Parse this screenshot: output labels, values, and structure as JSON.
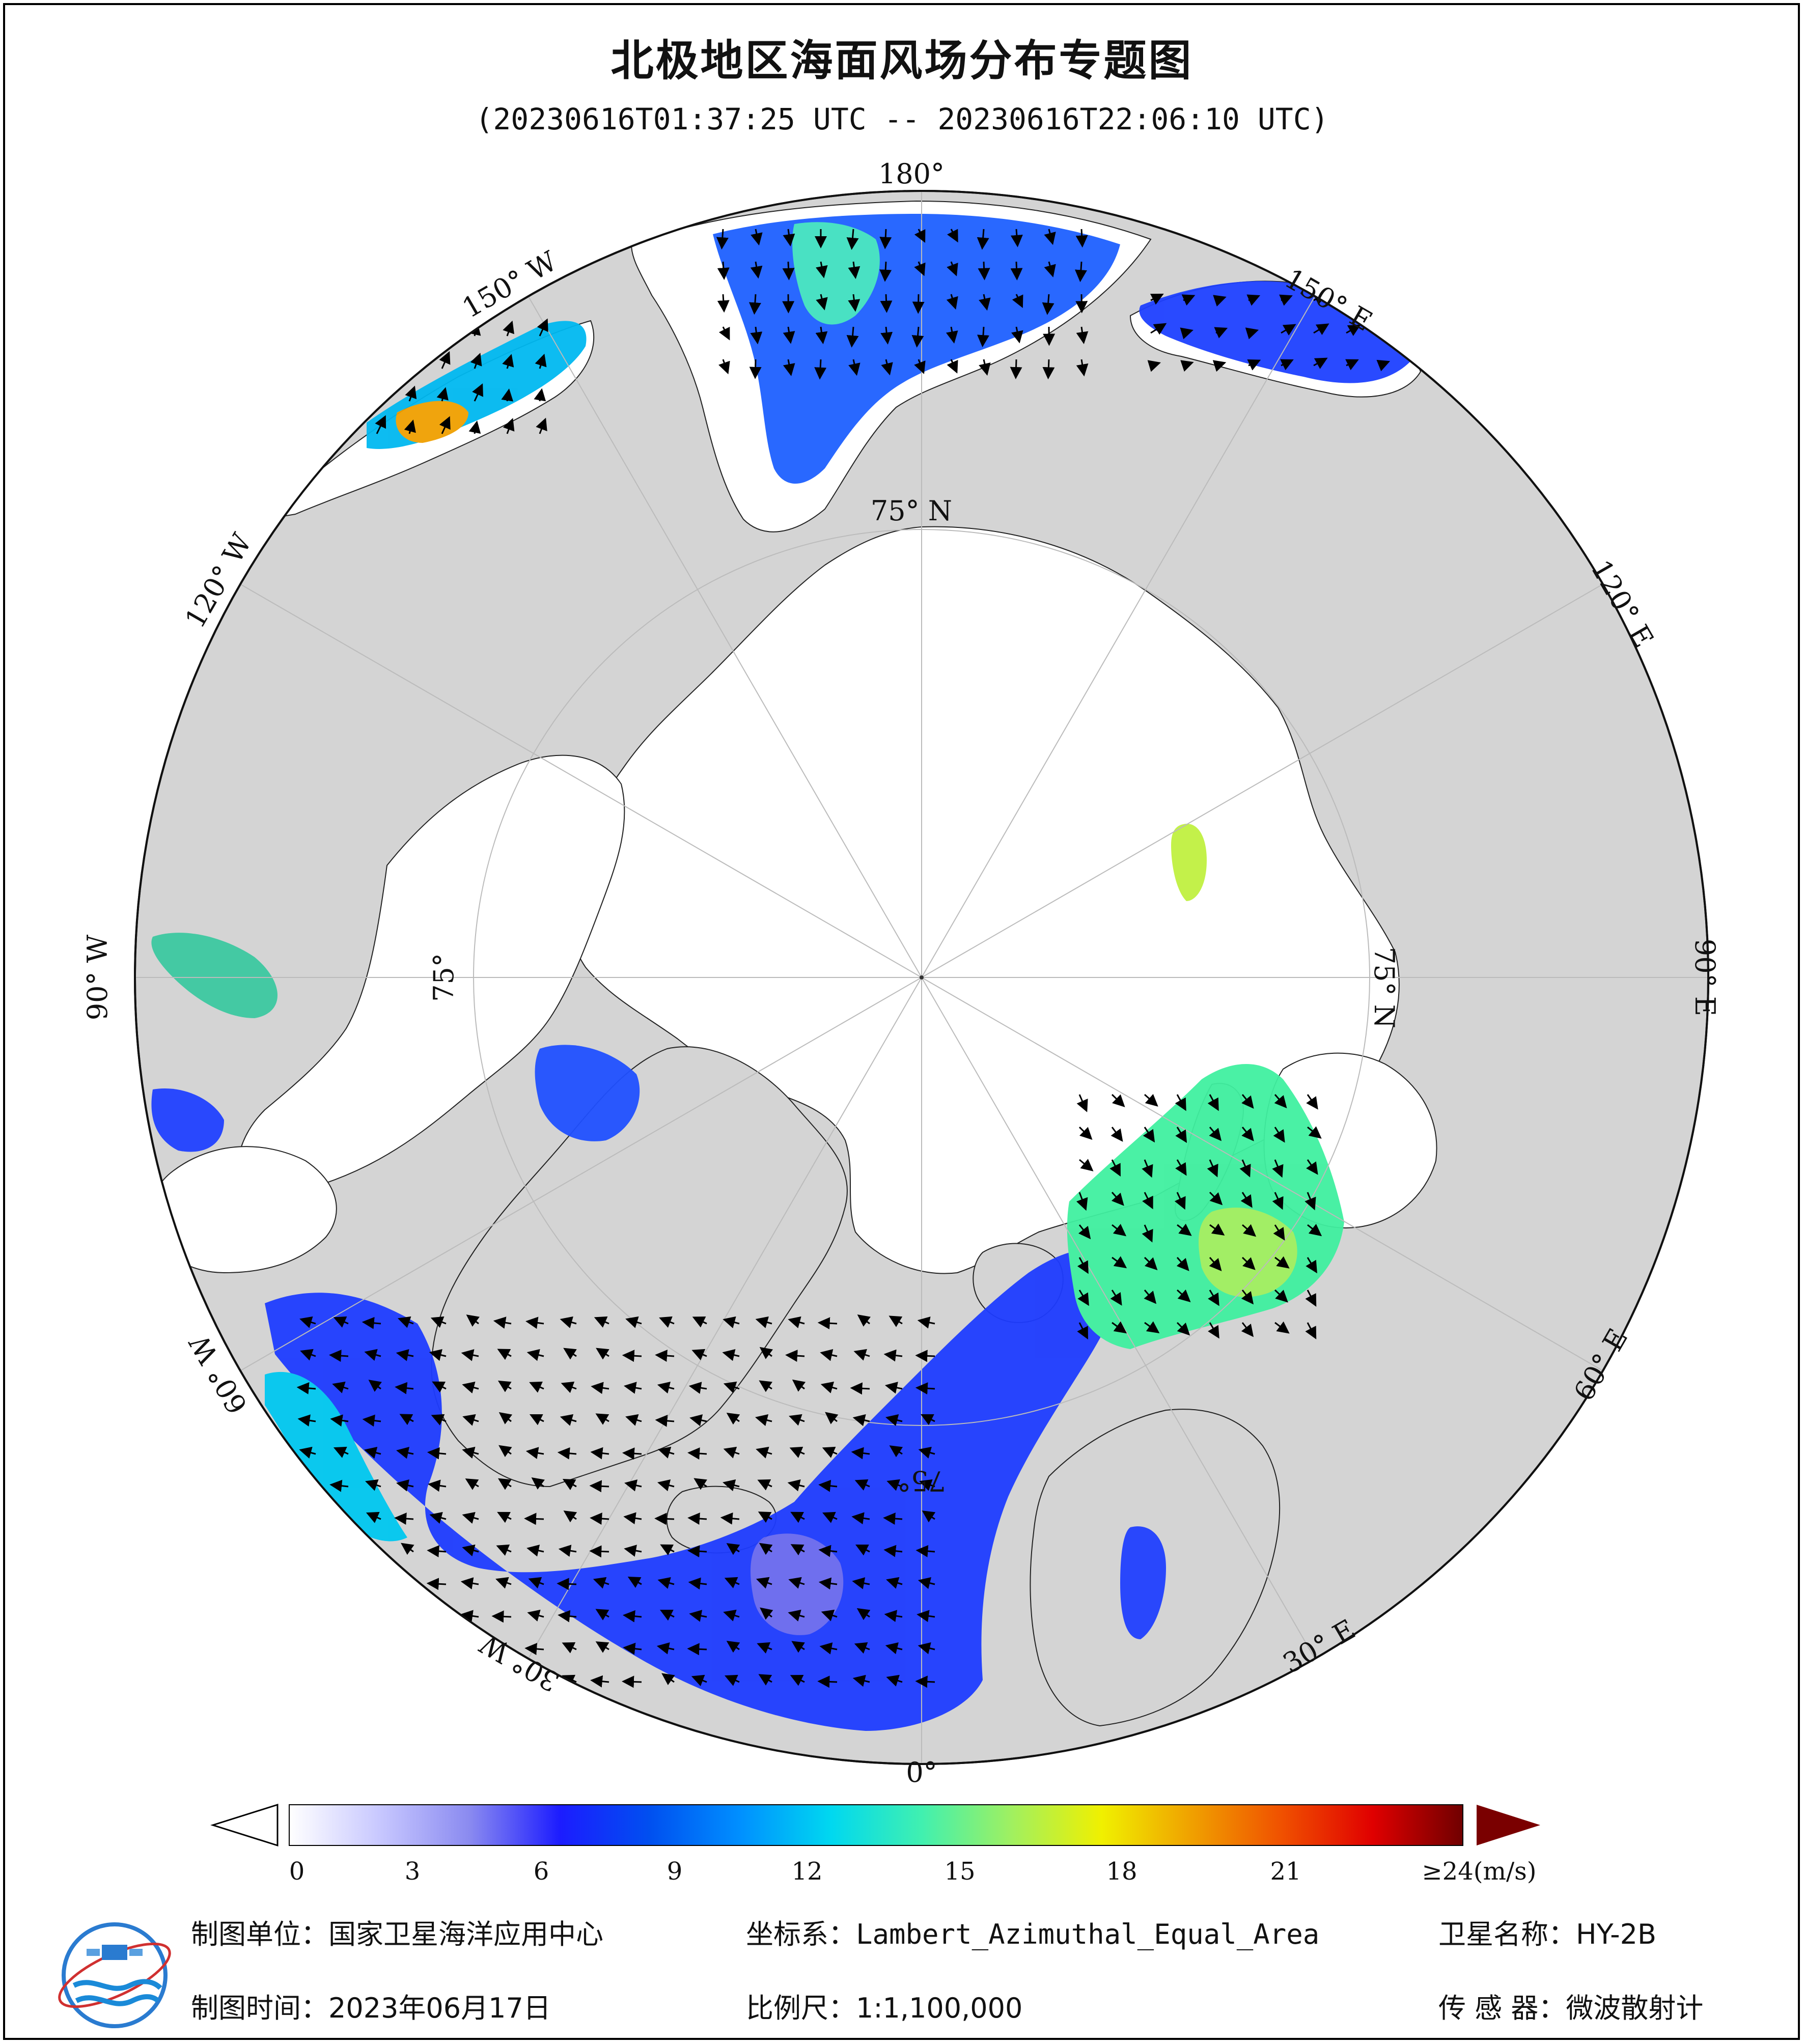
{
  "title": "北极地区海面风场分布专题图",
  "time_range": "(20230616T01:37:25 UTC -- 20230616T22:06:10 UTC)",
  "map": {
    "projection": "Lambert_Azimuthal_Equal_Area",
    "longitude_labels": [
      "180°",
      "150° E",
      "120° E",
      "90° E",
      "60° E",
      "30° E",
      "0°",
      "30° W",
      "60° W",
      "90° W",
      "120° W",
      "150° W"
    ],
    "latitude_labels": [
      "75° N",
      "75° N",
      "75°",
      "75°"
    ],
    "colors": {
      "ocean_no_data": "#ffffff",
      "land": "#d4d4d4",
      "outside_map": "#ffffff"
    }
  },
  "colorbar": {
    "tick_labels": [
      "0",
      "3",
      "6",
      "9",
      "12",
      "15",
      "18",
      "21",
      "≥24(m/s)"
    ],
    "tick_values": [
      0,
      3,
      6,
      9,
      12,
      15,
      18,
      21,
      24
    ],
    "unit": "m/s",
    "colors": [
      "#ffffff",
      "#c8c8ff",
      "#8a8af0",
      "#1c1cff",
      "#0050f0",
      "#0090ff",
      "#00d8f0",
      "#40f0b0",
      "#a0f060",
      "#f0f000",
      "#f0a000",
      "#f05000",
      "#e00000",
      "#700000"
    ]
  },
  "info": {
    "unit_label": "制图单位：",
    "unit_value": "国家卫星海洋应用中心",
    "coord_label": "坐标系：",
    "coord_value": "Lambert_Azimuthal_Equal_Area",
    "sat_label": "卫星名称：",
    "sat_value": "HY-2B",
    "time_label": "制图时间：",
    "time_value": "2023年06月17日",
    "scale_label": "比例尺：",
    "scale_value": "1:1,100,000",
    "sensor_label": "传 感 器：",
    "sensor_value": "微波散射计"
  },
  "logo_name": "nsoas-logo"
}
